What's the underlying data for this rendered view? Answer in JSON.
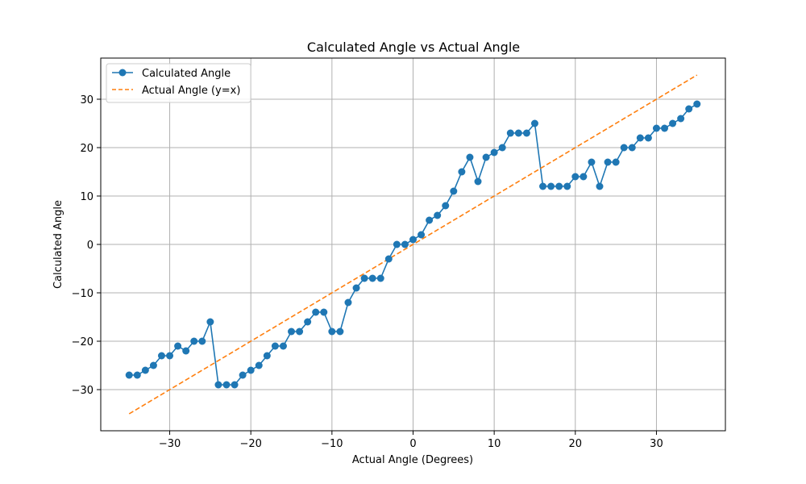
{
  "chart_data": {
    "type": "line",
    "title": "Calculated Angle vs Actual Angle",
    "xlabel": "Actual Angle (Degrees)",
    "ylabel": "Calculated Angle",
    "xlim": [
      -38.5,
      38.5
    ],
    "ylim": [
      -38.5,
      38.5
    ],
    "xticks": [
      -30,
      -20,
      -10,
      0,
      10,
      20,
      30
    ],
    "yticks": [
      -30,
      -20,
      -10,
      0,
      10,
      20,
      30
    ],
    "xtick_labels": [
      "−30",
      "−20",
      "−10",
      "0",
      "10",
      "20",
      "30"
    ],
    "ytick_labels": [
      "−30",
      "−20",
      "−10",
      "0",
      "10",
      "20",
      "30"
    ],
    "grid": true,
    "legend_position": "top-left",
    "series": [
      {
        "name": "Calculated Angle",
        "style": "line-marker",
        "color": "#1f77b4",
        "x": [
          -35,
          -34,
          -33,
          -32,
          -31,
          -30,
          -29,
          -28,
          -27,
          -26,
          -25,
          -24,
          -23,
          -22,
          -21,
          -20,
          -19,
          -18,
          -17,
          -16,
          -15,
          -14,
          -13,
          -12,
          -11,
          -10,
          -9,
          -8,
          -7,
          -6,
          -5,
          -4,
          -3,
          -2,
          -1,
          0,
          1,
          2,
          3,
          4,
          5,
          6,
          7,
          8,
          9,
          10,
          11,
          12,
          13,
          14,
          15,
          16,
          17,
          18,
          19,
          20,
          21,
          22,
          23,
          24,
          25,
          26,
          27,
          28,
          29,
          30,
          31,
          32,
          33,
          34,
          35
        ],
        "y": [
          -27,
          -27,
          -26,
          -25,
          -23,
          -23,
          -21,
          -22,
          -20,
          -20,
          -16,
          -29,
          -29,
          -29,
          -27,
          -26,
          -25,
          -23,
          -21,
          -21,
          -18,
          -18,
          -16,
          -14,
          -14,
          -18,
          -18,
          -12,
          -9,
          -7,
          -7,
          -7,
          -3,
          0,
          0,
          1,
          2,
          5,
          6,
          8,
          11,
          15,
          18,
          13,
          18,
          19,
          20,
          23,
          23,
          23,
          25,
          12,
          12,
          12,
          12,
          14,
          14,
          17,
          12,
          17,
          17,
          20,
          20,
          22,
          22,
          24,
          24,
          25,
          26,
          28,
          29
        ]
      },
      {
        "name": "Actual Angle (y=x)",
        "style": "dashed",
        "color": "#ff7f0e",
        "x": [
          -35,
          35
        ],
        "y": [
          -35,
          35
        ]
      }
    ]
  }
}
